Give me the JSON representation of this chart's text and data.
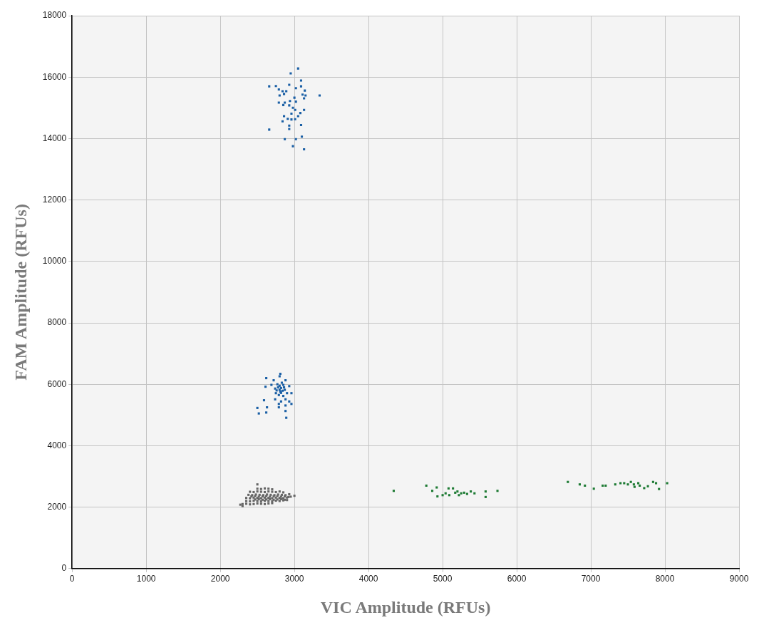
{
  "chart_data": {
    "type": "scatter",
    "xlabel": "VIC Amplitude (RFUs)",
    "ylabel": "FAM Amplitude (RFUs)",
    "xlim": [
      0,
      9000
    ],
    "xticks": [
      0,
      1000,
      2000,
      3000,
      4000,
      5000,
      6000,
      7000,
      8000,
      9000
    ],
    "ylim": [
      0,
      18000
    ],
    "yticks": [
      0,
      2000,
      4000,
      6000,
      8000,
      10000,
      12000,
      14000,
      16000,
      18000
    ],
    "grid": true,
    "legend": false,
    "marker": "square",
    "series": [
      {
        "color": "#1a5fa5",
        "x": [
          2950,
          3050,
          3090,
          2660,
          2750,
          2790,
          2930,
          3020,
          3090,
          3140,
          3340,
          2840,
          2890,
          2800,
          2860,
          3110,
          3150,
          3000,
          3130,
          2790,
          2870,
          2940,
          3020,
          2850,
          2930,
          2980,
          3010,
          3130,
          3080,
          2960,
          3050,
          2860,
          2910,
          2960,
          3010,
          2840,
          2930,
          3090,
          2930,
          2660,
          3100,
          2870,
          3020,
          2980,
          3130
        ],
        "values": [
          16120,
          16280,
          15890,
          15700,
          15710,
          15600,
          15750,
          15640,
          15700,
          15560,
          15400,
          15540,
          15540,
          15400,
          15450,
          15430,
          15400,
          15330,
          15310,
          15170,
          15170,
          15220,
          15200,
          15090,
          15080,
          15000,
          14930,
          14930,
          14830,
          14810,
          14730,
          14730,
          14640,
          14620,
          14630,
          14560,
          14420,
          14440,
          14310,
          14290,
          14060,
          13980,
          13980,
          13750,
          13650
        ]
      },
      {
        "color": "#1a5fa5",
        "x": [
          2810,
          2800,
          2620,
          2720,
          2880,
          2610,
          2690,
          2770,
          2850,
          2930,
          2740,
          2800,
          2870,
          2750,
          2820,
          2900,
          2960,
          2790,
          2850,
          2740,
          2880,
          2820,
          2930,
          2960,
          2590,
          2790,
          2880,
          2790,
          2500,
          2630,
          2880,
          2520,
          2620,
          2890,
          2780,
          2800,
          2820,
          2840,
          2760,
          2810,
          2860,
          2830
        ],
        "values": [
          6340,
          6260,
          6200,
          6130,
          6130,
          5920,
          5980,
          6000,
          5980,
          5940,
          5860,
          5820,
          5820,
          5710,
          5720,
          5710,
          5710,
          5650,
          5620,
          5510,
          5510,
          5440,
          5440,
          5360,
          5480,
          5360,
          5310,
          5250,
          5230,
          5250,
          5130,
          5050,
          5080,
          4910,
          5900,
          5950,
          5880,
          5790,
          5800,
          5760,
          5900,
          6050
        ]
      },
      {
        "color": "#666666",
        "x": [
          2500,
          3000,
          2270,
          2300,
          2300,
          2350,
          2400,
          2450,
          2500,
          2550,
          2600,
          2650,
          2700,
          2350,
          2400,
          2450,
          2500,
          2550,
          2600,
          2650,
          2700,
          2750,
          2800,
          2850,
          2900,
          2350,
          2400,
          2450,
          2500,
          2550,
          2600,
          2650,
          2700,
          2750,
          2800,
          2850,
          2900,
          2950,
          2380,
          2430,
          2480,
          2530,
          2580,
          2630,
          2680,
          2730,
          2780,
          2830,
          2880,
          2930,
          2400,
          2450,
          2500,
          2550,
          2600,
          2650,
          2700,
          2750,
          2800,
          2850,
          2500,
          2550,
          2600,
          2650,
          2700,
          2470,
          2520,
          2570,
          2620,
          2670,
          2720,
          2770,
          2820,
          2870,
          2420,
          2470,
          2520,
          2570,
          2620,
          2670,
          2720,
          2770,
          2820,
          2870,
          2920
        ],
        "values": [
          2740,
          2370,
          2080,
          2030,
          2100,
          2110,
          2090,
          2100,
          2120,
          2110,
          2100,
          2120,
          2130,
          2200,
          2190,
          2210,
          2200,
          2190,
          2210,
          2200,
          2190,
          2210,
          2200,
          2220,
          2230,
          2300,
          2290,
          2310,
          2300,
          2290,
          2310,
          2300,
          2290,
          2310,
          2300,
          2290,
          2310,
          2340,
          2400,
          2390,
          2410,
          2400,
          2390,
          2410,
          2400,
          2390,
          2410,
          2400,
          2390,
          2420,
          2500,
          2490,
          2510,
          2500,
          2490,
          2510,
          2500,
          2490,
          2510,
          2480,
          2600,
          2590,
          2610,
          2600,
          2580,
          2250,
          2260,
          2240,
          2250,
          2260,
          2240,
          2250,
          2260,
          2240,
          2350,
          2360,
          2340,
          2350,
          2360,
          2340,
          2350,
          2360,
          2340,
          2350,
          2330
        ]
      },
      {
        "color": "#1e7b34",
        "x": [
          4340,
          4780,
          4860,
          4920,
          4930,
          5000,
          5040,
          5080,
          5090,
          5140,
          5170,
          5200,
          5220,
          5250,
          5290,
          5330,
          5380,
          5430,
          5580,
          5580,
          5740
        ],
        "values": [
          2530,
          2700,
          2530,
          2640,
          2350,
          2390,
          2450,
          2610,
          2390,
          2610,
          2470,
          2510,
          2390,
          2450,
          2470,
          2430,
          2510,
          2450,
          2510,
          2330,
          2530
        ]
      },
      {
        "color": "#1e7b34",
        "x": [
          6690,
          6850,
          6920,
          7040,
          7160,
          7200,
          7330,
          7400,
          7450,
          7500,
          7540,
          7580,
          7590,
          7640,
          7660,
          7720,
          7770,
          7840,
          7880,
          7920,
          8030
        ],
        "values": [
          2820,
          2740,
          2700,
          2600,
          2700,
          2700,
          2740,
          2780,
          2780,
          2740,
          2820,
          2740,
          2660,
          2780,
          2700,
          2620,
          2680,
          2820,
          2780,
          2590,
          2780
        ]
      }
    ]
  }
}
